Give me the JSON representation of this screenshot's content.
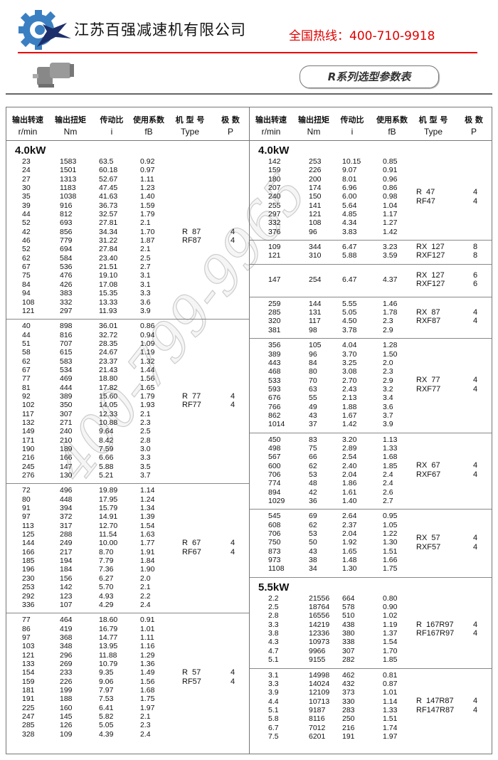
{
  "header": {
    "company": "江苏百强减速机有限公司",
    "hotline": "全国热线：400-710-9918",
    "series_title": "R系列选型参数表",
    "colors": {
      "brand_blue": "#3a7fc1",
      "star_navy": "#1d2f6b",
      "hotline_red": "#e00000"
    }
  },
  "watermark": "400-799-9965",
  "columns": {
    "cn": [
      "输出转速",
      "输出扭矩",
      "传动比",
      "使用系数",
      "机 型 号",
      "极 数"
    ],
    "en": [
      "r/min",
      "Nm",
      "i",
      "fB",
      "Type",
      "P"
    ]
  },
  "left_table": [
    {
      "kw": "4.0kW",
      "type": [
        "R  87",
        "RF87"
      ],
      "poles": [
        "4",
        "4"
      ],
      "rows": [
        [
          "23",
          "1583",
          "63.5",
          "0.92"
        ],
        [
          "24",
          "1501",
          "60.18",
          "0.97"
        ],
        [
          "27",
          "1313",
          "52.67",
          "1.11"
        ],
        [
          "30",
          "1183",
          "47.45",
          "1.23"
        ],
        [
          "35",
          "1038",
          "41.63",
          "1.40"
        ],
        [
          "39",
          "916",
          "36.73",
          "1.59"
        ],
        [
          "44",
          "812",
          "32.57",
          "1.79"
        ],
        [
          "52",
          "693",
          "27.81",
          "2.1"
        ],
        [
          "42",
          "856",
          "34.34",
          "1.70"
        ],
        [
          "46",
          "779",
          "31.22",
          "1.87"
        ],
        [
          "52",
          "694",
          "27.84",
          "2.1"
        ],
        [
          "62",
          "584",
          "23.40",
          "2.5"
        ],
        [
          "67",
          "536",
          "21.51",
          "2.7"
        ],
        [
          "75",
          "476",
          "19.10",
          "3.1"
        ],
        [
          "84",
          "426",
          "17.08",
          "3.1"
        ],
        [
          "94",
          "383",
          "15.35",
          "3.3"
        ],
        [
          "108",
          "332",
          "13.33",
          "3.6"
        ],
        [
          "121",
          "297",
          "11.93",
          "3.9"
        ]
      ]
    },
    {
      "kw": "",
      "type": [
        "R  77",
        "RF77"
      ],
      "poles": [
        "4",
        "4"
      ],
      "rows": [
        [
          "40",
          "898",
          "36.01",
          "0.86"
        ],
        [
          "44",
          "816",
          "32.72",
          "0.94"
        ],
        [
          "51",
          "707",
          "28.35",
          "1.09"
        ],
        [
          "58",
          "615",
          "24.67",
          "1.19"
        ],
        [
          "62",
          "583",
          "23.37",
          "1.32"
        ],
        [
          "67",
          "534",
          "21.43",
          "1.44"
        ],
        [
          "77",
          "469",
          "18.80",
          "1.56"
        ],
        [
          "81",
          "444",
          "17.82",
          "1.65"
        ],
        [
          "92",
          "389",
          "15.60",
          "1.79"
        ],
        [
          "102",
          "350",
          "14.05",
          "1.93"
        ],
        [
          "117",
          "307",
          "12.33",
          "2.1"
        ],
        [
          "132",
          "271",
          "10.88",
          "2.3"
        ],
        [
          "149",
          "240",
          "9.64",
          "2.5"
        ],
        [
          "171",
          "210",
          "8.42",
          "2.8"
        ],
        [
          "190",
          "189",
          "7.59",
          "3.0"
        ],
        [
          "216",
          "166",
          "6.66",
          "3.3"
        ],
        [
          "245",
          "147",
          "5.88",
          "3.5"
        ],
        [
          "276",
          "130",
          "5.21",
          "3.7"
        ]
      ]
    },
    {
      "kw": "",
      "type": [
        "R  67",
        "RF67"
      ],
      "poles": [
        "4",
        "4"
      ],
      "rows": [
        [
          "72",
          "496",
          "19.89",
          "1.14"
        ],
        [
          "80",
          "448",
          "17.95",
          "1.24"
        ],
        [
          "91",
          "394",
          "15.79",
          "1.34"
        ],
        [
          "97",
          "372",
          "14.91",
          "1.39"
        ],
        [
          "113",
          "317",
          "12.70",
          "1.54"
        ],
        [
          "125",
          "288",
          "11.54",
          "1.63"
        ],
        [
          "144",
          "249",
          "10.00",
          "1.77"
        ],
        [
          "166",
          "217",
          "8.70",
          "1.91"
        ],
        [
          "185",
          "194",
          "7.79",
          "1.84"
        ],
        [
          "196",
          "184",
          "7.36",
          "1.90"
        ],
        [
          "230",
          "156",
          "6.27",
          "2.0"
        ],
        [
          "253",
          "142",
          "5.70",
          "2.1"
        ],
        [
          "292",
          "123",
          "4.93",
          "2.2"
        ],
        [
          "336",
          "107",
          "4.29",
          "2.4"
        ]
      ]
    },
    {
      "kw": "",
      "type": [
        "R  57",
        "RF57"
      ],
      "poles": [
        "4",
        "4"
      ],
      "rows": [
        [
          "77",
          "464",
          "18.60",
          "0.91"
        ],
        [
          "86",
          "419",
          "16.79",
          "1.01"
        ],
        [
          "97",
          "368",
          "14.77",
          "1.11"
        ],
        [
          "103",
          "348",
          "13.95",
          "1.16"
        ],
        [
          "121",
          "296",
          "11.88",
          "1.29"
        ],
        [
          "133",
          "269",
          "10.79",
          "1.36"
        ],
        [
          "154",
          "233",
          "9.35",
          "1.49"
        ],
        [
          "159",
          "226",
          "9.06",
          "1.56"
        ],
        [
          "181",
          "199",
          "7.97",
          "1.68"
        ],
        [
          "191",
          "188",
          "7.53",
          "1.75"
        ],
        [
          "225",
          "160",
          "6.41",
          "1.97"
        ],
        [
          "247",
          "145",
          "5.82",
          "2.1"
        ],
        [
          "285",
          "126",
          "5.05",
          "2.3"
        ],
        [
          "328",
          "109",
          "4.39",
          "2.4"
        ]
      ]
    }
  ],
  "right_table": [
    {
      "kw": "4.0kW",
      "type": [
        "R  47",
        "RF47"
      ],
      "poles": [
        "4",
        "4"
      ],
      "rows": [
        [
          "142",
          "253",
          "10.15",
          "0.85"
        ],
        [
          "159",
          "226",
          "9.07",
          "0.91"
        ],
        [
          "180",
          "200",
          "8.01",
          "0.96"
        ],
        [
          "207",
          "174",
          "6.96",
          "0.86"
        ],
        [
          "240",
          "150",
          "6.00",
          "0.98"
        ],
        [
          "255",
          "141",
          "5.64",
          "1.04"
        ],
        [
          "297",
          "121",
          "4.85",
          "1.17"
        ],
        [
          "332",
          "108",
          "4.34",
          "1.27"
        ],
        [
          "376",
          "96",
          "3.83",
          "1.42"
        ]
      ]
    },
    {
      "kw": "",
      "type": [
        "RX  127",
        "RXF127"
      ],
      "poles": [
        "8",
        "8"
      ],
      "rows": [
        [
          "109",
          "344",
          "6.47",
          "3.23"
        ],
        [
          "121",
          "310",
          "5.88",
          "3.59"
        ]
      ]
    },
    {
      "kw": "",
      "type": [
        "RX  127",
        "RXF127"
      ],
      "poles": [
        "6",
        "6"
      ],
      "tall": true,
      "rows": [
        [
          "147",
          "254",
          "6.47",
          "4.37"
        ]
      ]
    },
    {
      "kw": "",
      "type": [
        "RX  87",
        "RXF87"
      ],
      "poles": [
        "4",
        "4"
      ],
      "rows": [
        [
          "259",
          "144",
          "5.55",
          "1.46"
        ],
        [
          "285",
          "131",
          "5.05",
          "1.78"
        ],
        [
          "320",
          "117",
          "4.50",
          "2.3"
        ],
        [
          "381",
          "98",
          "3.78",
          "2.9"
        ]
      ]
    },
    {
      "kw": "",
      "type": [
        "RX  77",
        "RXF77"
      ],
      "poles": [
        "4",
        "4"
      ],
      "rows": [
        [
          "356",
          "105",
          "4.04",
          "1.28"
        ],
        [
          "389",
          "96",
          "3.70",
          "1.50"
        ],
        [
          "443",
          "84",
          "3.25",
          "2.0"
        ],
        [
          "468",
          "80",
          "3.08",
          "2.3"
        ],
        [
          "533",
          "70",
          "2.70",
          "2.9"
        ],
        [
          "593",
          "63",
          "2.43",
          "3.2"
        ],
        [
          "676",
          "55",
          "2.13",
          "3.4"
        ],
        [
          "766",
          "49",
          "1.88",
          "3.6"
        ],
        [
          "862",
          "43",
          "1.67",
          "3.7"
        ],
        [
          "1014",
          "37",
          "1.42",
          "3.9"
        ]
      ]
    },
    {
      "kw": "",
      "type": [
        "RX  67",
        "RXF67"
      ],
      "poles": [
        "4",
        "4"
      ],
      "rows": [
        [
          "450",
          "83",
          "3.20",
          "1.13"
        ],
        [
          "498",
          "75",
          "2.89",
          "1.33"
        ],
        [
          "567",
          "66",
          "2.54",
          "1.68"
        ],
        [
          "600",
          "62",
          "2.40",
          "1.85"
        ],
        [
          "706",
          "53",
          "2.04",
          "2.4"
        ],
        [
          "774",
          "48",
          "1.86",
          "2.4"
        ],
        [
          "894",
          "42",
          "1.61",
          "2.6"
        ],
        [
          "1029",
          "36",
          "1.40",
          "2.7"
        ]
      ]
    },
    {
      "kw": "",
      "type": [
        "RX  57",
        "RXF57"
      ],
      "poles": [
        "4",
        "4"
      ],
      "rows": [
        [
          "545",
          "69",
          "2.64",
          "0.95"
        ],
        [
          "608",
          "62",
          "2.37",
          "1.05"
        ],
        [
          "706",
          "53",
          "2.04",
          "1.22"
        ],
        [
          "750",
          "50",
          "1.92",
          "1.30"
        ],
        [
          "873",
          "43",
          "1.65",
          "1.51"
        ],
        [
          "973",
          "38",
          "1.48",
          "1.66"
        ],
        [
          "1108",
          "34",
          "1.30",
          "1.75"
        ]
      ]
    },
    {
      "kw": "5.5kW",
      "type": [
        "R  167R97",
        "RF167R97"
      ],
      "poles": [
        "4",
        "4"
      ],
      "rows": [
        [
          "2.2",
          "21556",
          "664",
          "0.80"
        ],
        [
          "2.5",
          "18764",
          "578",
          "0.90"
        ],
        [
          "2.8",
          "16556",
          "510",
          "1.02"
        ],
        [
          "3.3",
          "14219",
          "438",
          "1.19"
        ],
        [
          "3.8",
          "12336",
          "380",
          "1.37"
        ],
        [
          "4.3",
          "10973",
          "338",
          "1.54"
        ],
        [
          "4.7",
          "9966",
          "307",
          "1.70"
        ],
        [
          "5.1",
          "9155",
          "282",
          "1.85"
        ]
      ]
    },
    {
      "kw": "",
      "type": [
        "R  147R87",
        "RF147R87"
      ],
      "poles": [
        "4",
        "4"
      ],
      "rows": [
        [
          "3.1",
          "14998",
          "462",
          "0.81"
        ],
        [
          "3.3",
          "14024",
          "432",
          "0.87"
        ],
        [
          "3.9",
          "12109",
          "373",
          "1.01"
        ],
        [
          "4.4",
          "10713",
          "330",
          "1.14"
        ],
        [
          "5.1",
          "9187",
          "283",
          "1.33"
        ],
        [
          "5.8",
          "8116",
          "250",
          "1.51"
        ],
        [
          "6.7",
          "7012",
          "216",
          "1.74"
        ],
        [
          "7.5",
          "6201",
          "191",
          "1.97"
        ]
      ]
    }
  ]
}
